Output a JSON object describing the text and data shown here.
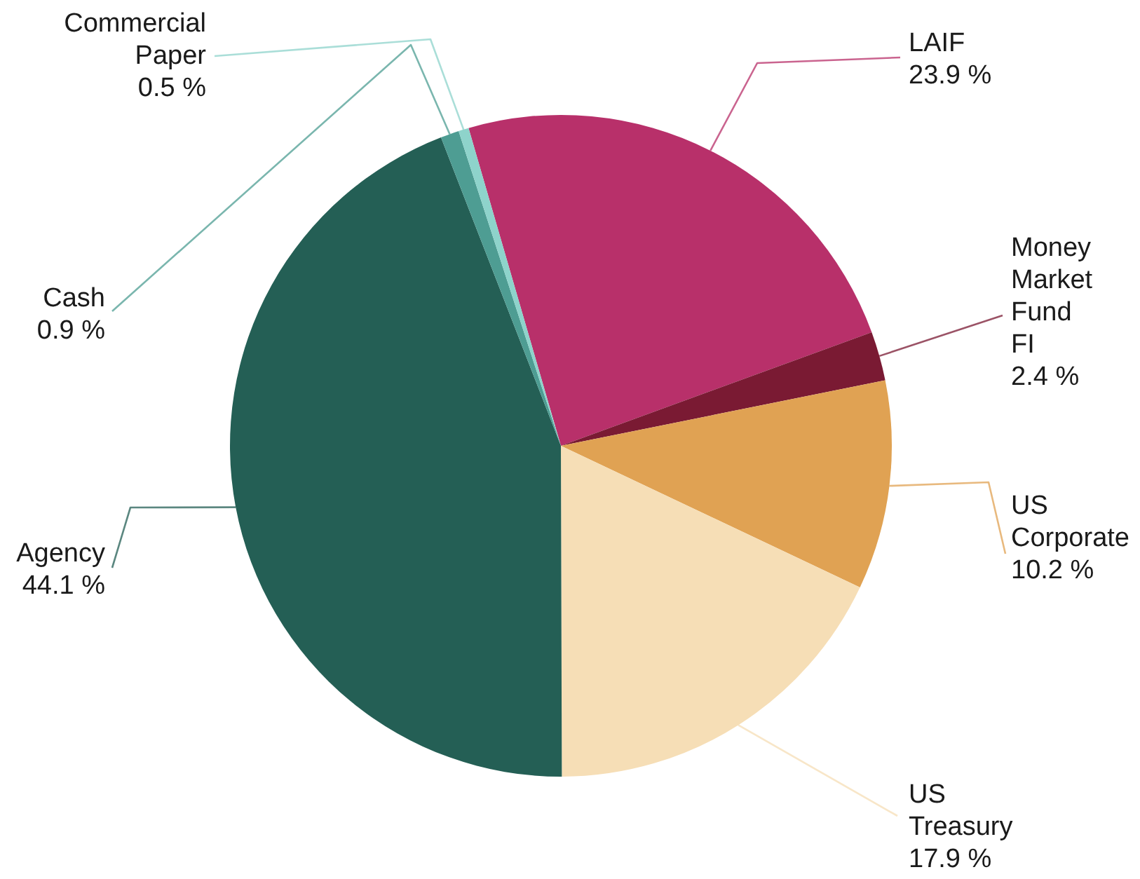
{
  "chart_data": {
    "type": "pie",
    "categories": [
      "LAIF",
      "Money Market Fund FI",
      "US Corporate",
      "US Treasury",
      "Agency",
      "Cash",
      "Commercial Paper"
    ],
    "values": [
      23.9,
      2.4,
      10.2,
      17.9,
      44.1,
      0.9,
      0.5
    ],
    "colors": [
      "#b8306a",
      "#7a1a33",
      "#e0a253",
      "#f6deb6",
      "#245f55",
      "#4e9d93",
      "#8ed3cb"
    ],
    "value_labels": [
      "23.9 %",
      "2.4 %",
      "10.2 %",
      "17.9 %",
      "44.1 %",
      "0.9 %",
      "0.5 %"
    ]
  }
}
